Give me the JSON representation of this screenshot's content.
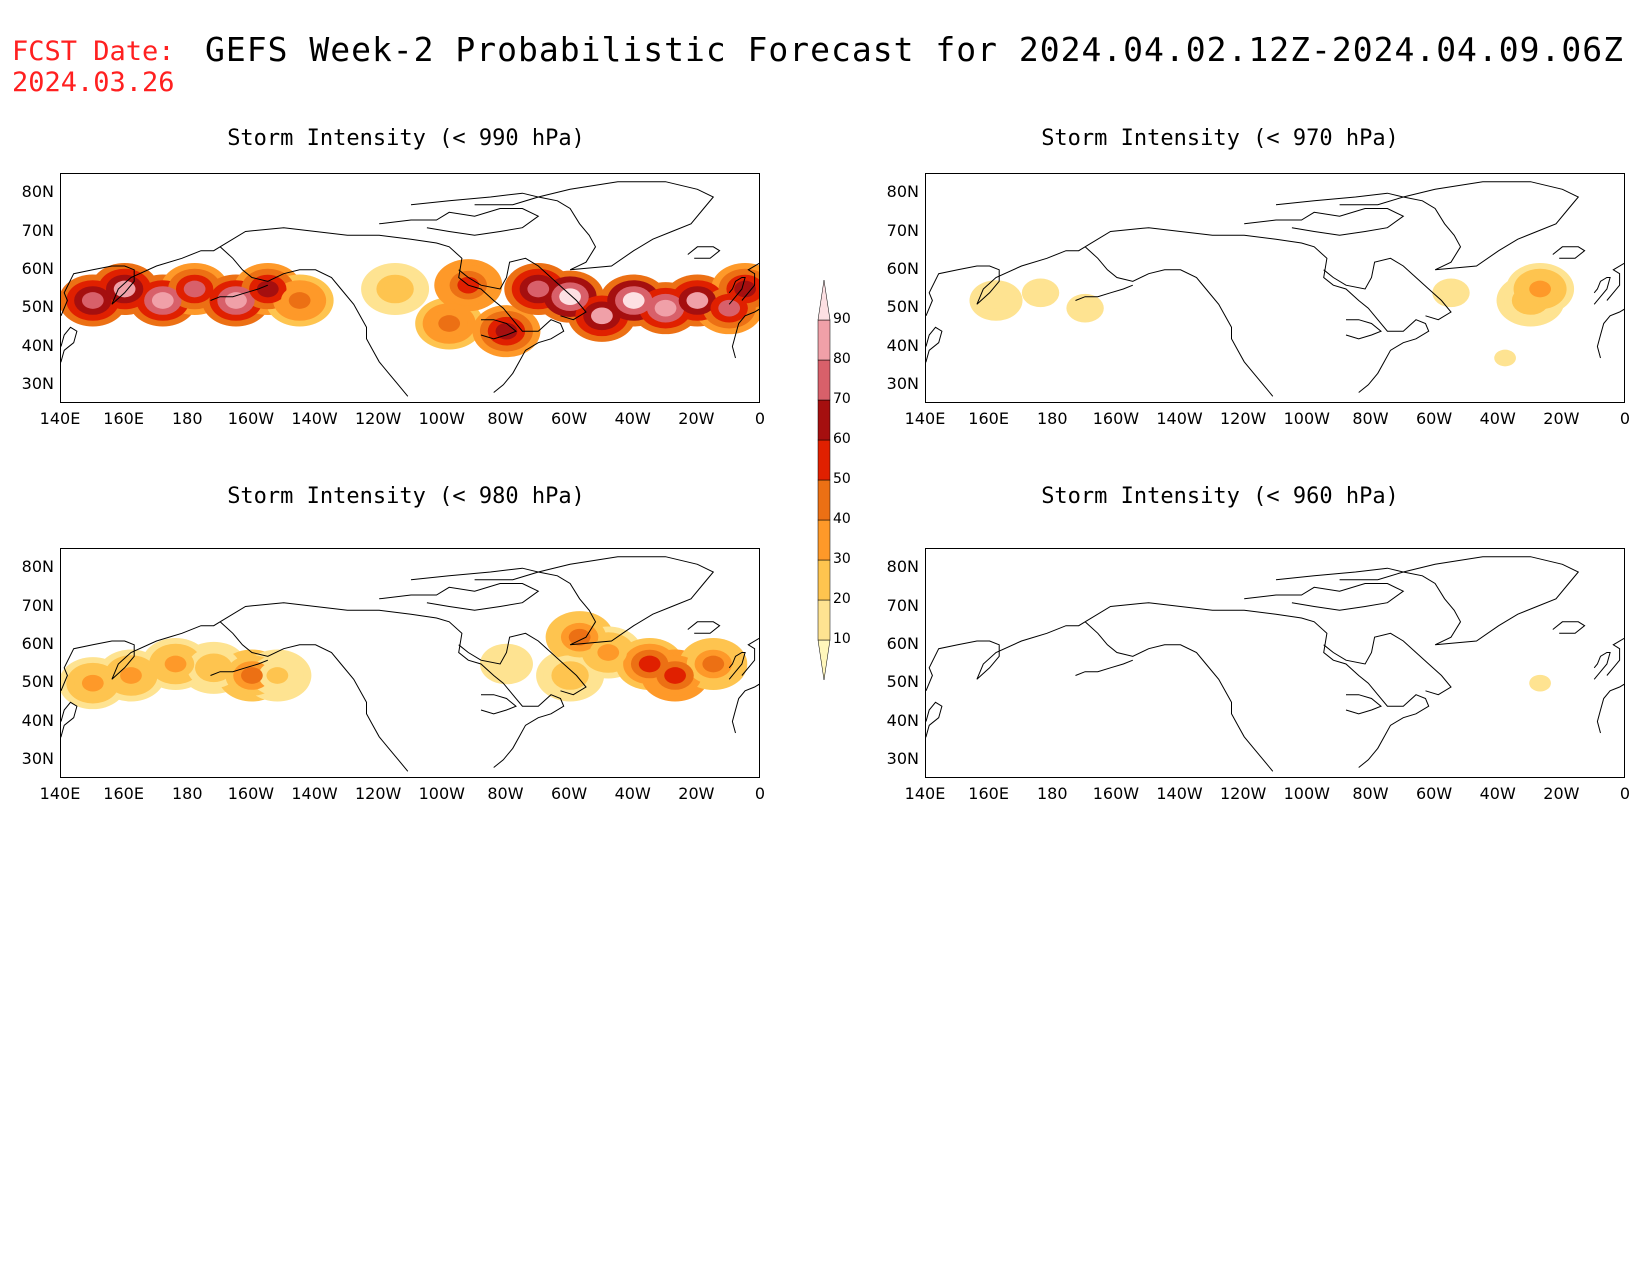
{
  "header": {
    "fcst_line1": "FCST Date:",
    "fcst_line2": "2024.03.26",
    "title": "GEFS Week-2 Probabilistic Forecast for 2024.04.02.12Z-2024.04.09.06Z"
  },
  "panels": [
    {
      "title": "Storm Intensity (< 990 hPa)",
      "key": "p990"
    },
    {
      "title": "Storm Intensity (< 970 hPa)",
      "key": "p970"
    },
    {
      "title": "Storm Intensity (< 980 hPa)",
      "key": "p980"
    },
    {
      "title": "Storm Intensity (< 960 hPa)",
      "key": "p960"
    }
  ],
  "lat_ticks": [
    "80N",
    "70N",
    "60N",
    "50N",
    "40N",
    "30N"
  ],
  "lon_ticks": [
    "140E",
    "160E",
    "180",
    "160W",
    "140W",
    "120W",
    "100W",
    "80W",
    "60W",
    "40W",
    "20W",
    "0"
  ],
  "colorbar": {
    "levels": [
      "10",
      "20",
      "30",
      "40",
      "50",
      "60",
      "70",
      "80",
      "90"
    ],
    "colors": [
      "#fff7bc",
      "#fee391",
      "#fec44f",
      "#fe9929",
      "#ec7014",
      "#e02000",
      "#a50f0f",
      "#d8606a",
      "#f0a0a8",
      "#fde0e3"
    ]
  },
  "chart_data": {
    "type": "heatmap",
    "x_range_deg": [
      140,
      360
    ],
    "y_range_deg": [
      25,
      85
    ],
    "blobs_units": "lon (0-360 E), lat (deg N), probability %",
    "p990": [
      [
        150,
        52,
        75
      ],
      [
        160,
        55,
        80
      ],
      [
        172,
        52,
        85
      ],
      [
        182,
        55,
        70
      ],
      [
        195,
        52,
        85
      ],
      [
        205,
        55,
        65
      ],
      [
        215,
        52,
        45
      ],
      [
        245,
        55,
        25
      ],
      [
        262,
        46,
        45
      ],
      [
        268,
        56,
        55
      ],
      [
        280,
        44,
        60
      ],
      [
        290,
        55,
        75
      ],
      [
        300,
        53,
        90
      ],
      [
        310,
        48,
        80
      ],
      [
        320,
        52,
        90
      ],
      [
        330,
        50,
        85
      ],
      [
        340,
        52,
        80
      ],
      [
        350,
        50,
        70
      ],
      [
        355,
        55,
        60
      ]
    ],
    "p970": [
      [
        162,
        52,
        15
      ],
      [
        176,
        54,
        12
      ],
      [
        190,
        50,
        12
      ],
      [
        305,
        54,
        12
      ],
      [
        330,
        52,
        25
      ],
      [
        333,
        55,
        30
      ],
      [
        322,
        37,
        10
      ]
    ],
    "p980": [
      [
        150,
        50,
        30
      ],
      [
        162,
        52,
        35
      ],
      [
        176,
        55,
        30
      ],
      [
        188,
        54,
        25
      ],
      [
        200,
        52,
        40
      ],
      [
        208,
        52,
        20
      ],
      [
        280,
        55,
        15
      ],
      [
        300,
        52,
        25
      ],
      [
        303,
        62,
        40
      ],
      [
        312,
        58,
        30
      ],
      [
        325,
        55,
        50
      ],
      [
        333,
        52,
        55
      ],
      [
        345,
        55,
        40
      ]
    ],
    "p960": [
      [
        333,
        50,
        10
      ]
    ]
  }
}
